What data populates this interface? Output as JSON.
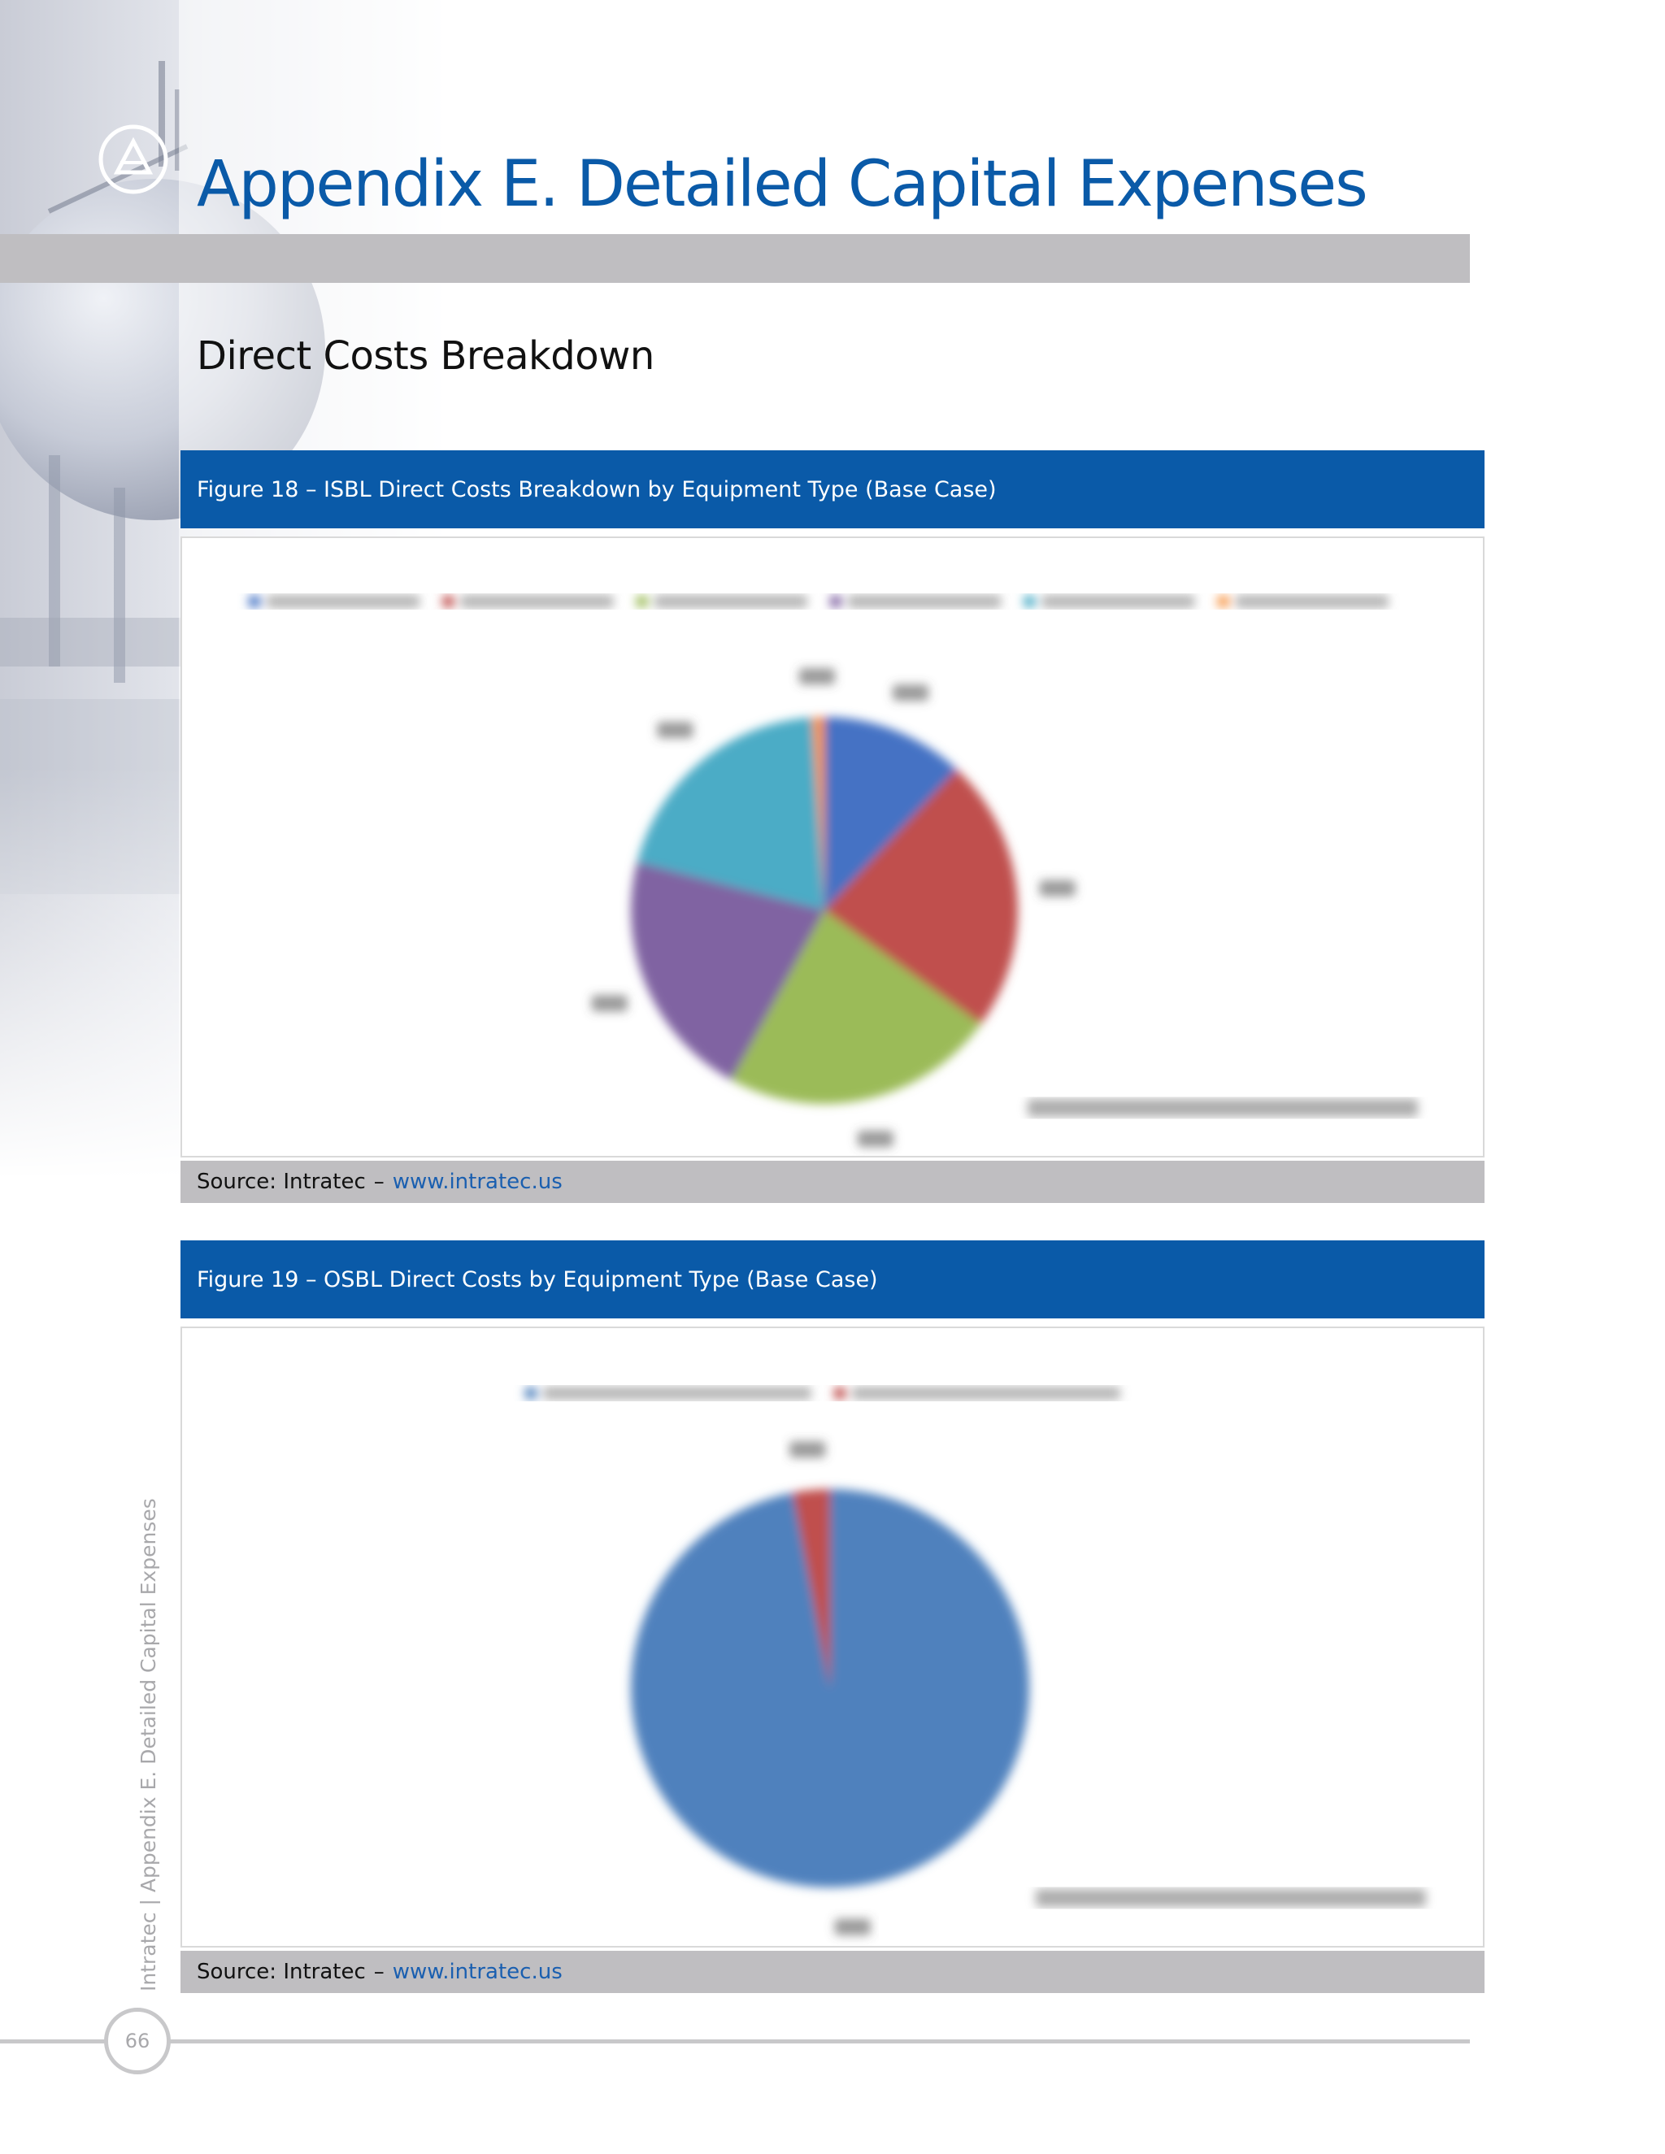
{
  "page": {
    "title": "Appendix E. Detailed Capital Expenses",
    "subtitle": "Direct Costs Breakdown",
    "sidebar_text": "Intratec | Appendix E. Detailed Capital Expenses",
    "page_number": "66"
  },
  "figures": [
    {
      "caption": "Figure 18 – ISBL Direct Costs Breakdown by Equipment Type (Base Case)",
      "source_label": "Source: Intratec",
      "source_dash": "–",
      "source_link": "www.intratec.us"
    },
    {
      "caption": "Figure 19 – OSBL Direct Costs by Equipment Type (Base Case)",
      "source_label": "Source: Intratec",
      "source_dash": "–",
      "source_link": "www.intratec.us"
    }
  ],
  "chart_data": [
    {
      "type": "pie",
      "title": "",
      "legend_position": "top",
      "slices": [
        {
          "value": 12,
          "color": "#4472c4"
        },
        {
          "value": 23,
          "color": "#c0504d"
        },
        {
          "value": 23,
          "color": "#9bbb59"
        },
        {
          "value": 21,
          "color": "#8064a2"
        },
        {
          "value": 20,
          "color": "#4bacc6"
        },
        {
          "value": 1,
          "color": "#f79646"
        }
      ]
    },
    {
      "type": "pie",
      "title": "",
      "legend_position": "top",
      "slices": [
        {
          "value": 97,
          "color": "#4f81bd"
        },
        {
          "value": 3,
          "color": "#c0504d"
        }
      ]
    }
  ]
}
